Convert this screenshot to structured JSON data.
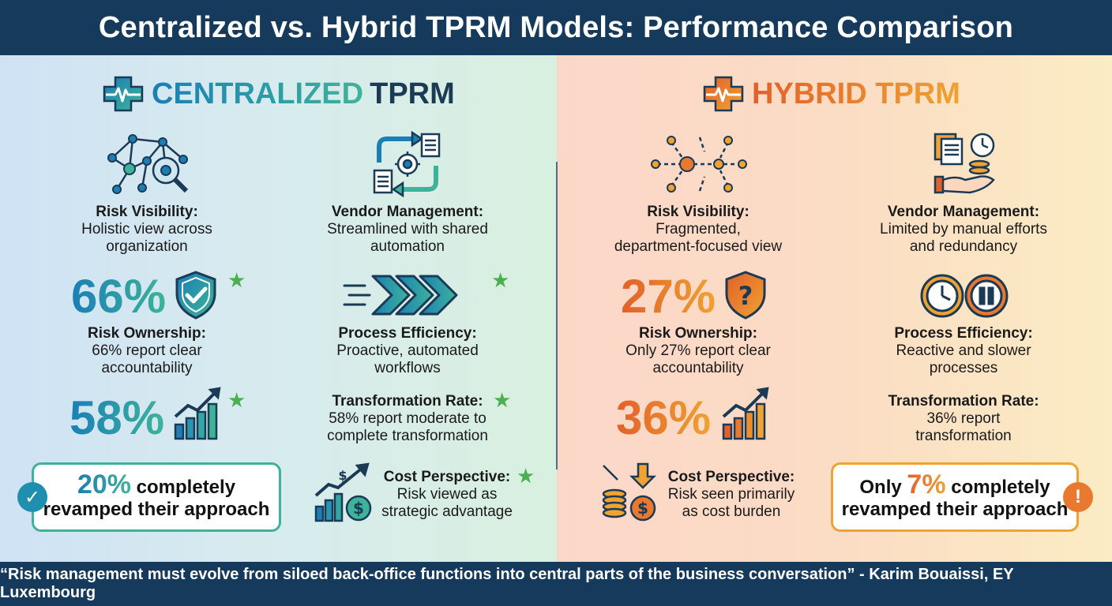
{
  "title": "Centralized vs. Hybrid TPRM Models: Performance Comparison",
  "footer_quote": "“Risk management must evolve from siloed back-office functions into central parts of the business conversation” - Karim Bouaissi, EY Luxembourg",
  "colors": {
    "navy": "#163a5c",
    "blue_accent": "#1a7fb5",
    "teal_accent": "#3eb39a",
    "orange_accent": "#e2602a",
    "amber_accent": "#f0a232",
    "star_green": "#4caf50"
  },
  "centralized": {
    "title_part1": "CENTRALIZED",
    "title_part2": "TPRM",
    "risk_visibility": {
      "label": "Risk Visibility:",
      "desc1": "Holistic view across",
      "desc2": "organization"
    },
    "vendor_management": {
      "label": "Vendor Management:",
      "desc1": "Streamlined with shared",
      "desc2": "automation"
    },
    "risk_ownership": {
      "value": "66%",
      "label": "Risk Ownership:",
      "desc1": "66% report clear",
      "desc2": "accountability"
    },
    "process_efficiency": {
      "label": "Process Efficiency:",
      "desc1": "Proactive, automated",
      "desc2": "workflows"
    },
    "transformation_rate": {
      "value": "58%",
      "label": "Transformation Rate:",
      "desc1": "58% report moderate to",
      "desc2": "complete transformation"
    },
    "cost_perspective": {
      "label": "Cost Perspective:",
      "desc1": "Risk viewed as",
      "desc2": "strategic advantage"
    },
    "callout": {
      "highlight": "20%",
      "line1_rest": " completely",
      "line2": "revamped their approach"
    }
  },
  "hybrid": {
    "title": "HYBRID TPRM",
    "risk_visibility": {
      "label": "Risk Visibility:",
      "desc1": "Fragmented,",
      "desc2": "department-focused view"
    },
    "vendor_management": {
      "label": "Vendor Management:",
      "desc1": "Limited by manual efforts",
      "desc2": "and redundancy"
    },
    "risk_ownership": {
      "value": "27%",
      "label": "Risk Ownership:",
      "desc1": "Only 27% report clear",
      "desc2": "accountability"
    },
    "process_efficiency": {
      "label": "Process Efficiency:",
      "desc1": "Reactive and slower",
      "desc2": "processes"
    },
    "transformation_rate": {
      "value": "36%",
      "label": "Transformation Rate:",
      "desc1": "36% report",
      "desc2": "transformation"
    },
    "cost_perspective": {
      "label": "Cost Perspective:",
      "desc1": "Risk seen primarily",
      "desc2": "as cost burden"
    },
    "callout": {
      "prefix": "Only ",
      "highlight": "7%",
      "line1_rest": " completely",
      "line2": "revamped their approach"
    }
  },
  "icons": {
    "centralized_title": "medical-cross-heartbeat-icon",
    "network_magnifier": "network-magnifier-icon",
    "workflow_gear": "workflow-gear-icon",
    "shield_check": "shield-check-icon",
    "forward_arrows": "forward-arrows-icon",
    "growth_chart": "growth-chart-icon",
    "cost_chart_coin": "chart-coin-icon",
    "check_badge": "check-badge-icon",
    "hybrid_title": "medical-cross-heartbeat-icon",
    "fragmented_network": "fragmented-network-icon",
    "documents_hand_clock": "documents-hand-clock-icon",
    "shield_question": "shield-question-icon",
    "clock_pause": "clock-pause-icon",
    "coins_down_arrow": "coins-down-arrow-icon",
    "exclamation_badge": "exclamation-badge-icon"
  }
}
